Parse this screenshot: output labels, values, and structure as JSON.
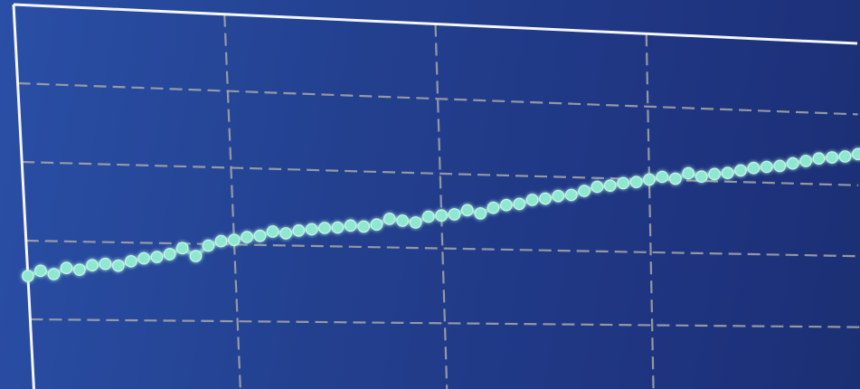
{
  "chart_data": {
    "type": "line",
    "title": "",
    "xlabel": "",
    "ylabel": "",
    "grid": true,
    "legend": "none",
    "xlim": [
      0,
      1
    ],
    "ylim": [
      0,
      5
    ],
    "x_gridlines": [
      0.25,
      0.5,
      0.75
    ],
    "y_gridlines": [
      1,
      2,
      3,
      4
    ],
    "series": [
      {
        "marker": "circle",
        "color": "#8ee8cf",
        "x": [
          0.0,
          0.0156,
          0.0313,
          0.0469,
          0.0625,
          0.0781,
          0.0938,
          0.1094,
          0.125,
          0.1406,
          0.1563,
          0.1719,
          0.1875,
          0.2031,
          0.2188,
          0.2344,
          0.25,
          0.2656,
          0.2813,
          0.2969,
          0.3125,
          0.3281,
          0.3438,
          0.3594,
          0.375,
          0.3906,
          0.4063,
          0.4219,
          0.4375,
          0.4531,
          0.4688,
          0.4844,
          0.5,
          0.5156,
          0.5313,
          0.5469,
          0.5625,
          0.5781,
          0.5938,
          0.6094,
          0.625,
          0.6406,
          0.6563,
          0.6719,
          0.6875,
          0.7031,
          0.7188,
          0.7344,
          0.75,
          0.7656,
          0.7813,
          0.7969,
          0.8125,
          0.8281,
          0.8438,
          0.8594,
          0.875,
          0.8906,
          0.9063,
          0.9219,
          0.9375,
          0.9531,
          0.9688,
          0.9844,
          1.0
        ],
        "values": [
          1.55,
          1.62,
          1.58,
          1.66,
          1.64,
          1.7,
          1.72,
          1.7,
          1.76,
          1.8,
          1.82,
          1.86,
          1.94,
          1.84,
          1.98,
          2.04,
          2.06,
          2.1,
          2.12,
          2.18,
          2.16,
          2.2,
          2.22,
          2.24,
          2.25,
          2.28,
          2.27,
          2.3,
          2.38,
          2.36,
          2.34,
          2.42,
          2.44,
          2.46,
          2.52,
          2.48,
          2.56,
          2.6,
          2.62,
          2.68,
          2.7,
          2.74,
          2.76,
          2.82,
          2.88,
          2.9,
          2.94,
          2.96,
          3.0,
          3.04,
          3.02,
          3.1,
          3.06,
          3.1,
          3.12,
          3.16,
          3.2,
          3.22,
          3.24,
          3.28,
          3.32,
          3.36,
          3.38,
          3.4,
          3.44
        ]
      }
    ]
  }
}
